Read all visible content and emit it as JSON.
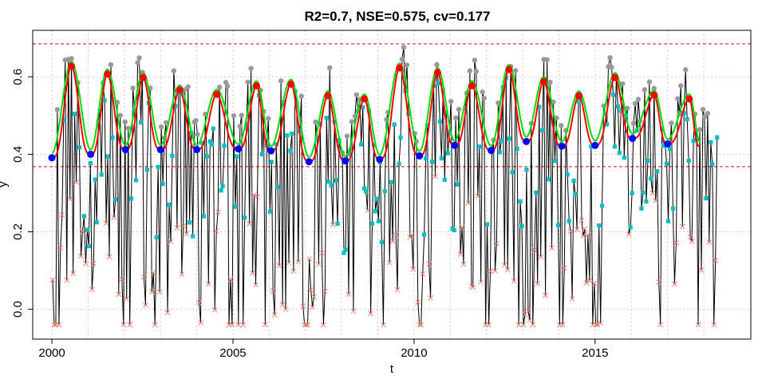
{
  "chart_data": {
    "type": "line",
    "title": "R2=0.7, NSE=0.575, cv=0.177",
    "xlabel": "t",
    "ylabel": "y",
    "xlim": [
      1999.47,
      2019.3
    ],
    "ylim": [
      -0.077,
      0.72
    ],
    "x_ticks": [
      2000,
      2005,
      2010,
      2015
    ],
    "x_tick_labels": [
      "2000",
      "2005",
      "2010",
      "2015"
    ],
    "y_ticks": [
      0.0,
      0.2,
      0.4,
      0.6
    ],
    "y_tick_labels": [
      "0.0",
      "0.2",
      "0.4",
      "0.6"
    ],
    "grid": true,
    "vgrid_years": [
      2000,
      2001,
      2002,
      2003,
      2004,
      2005,
      2006,
      2007,
      2008,
      2009,
      2010,
      2011,
      2012,
      2013,
      2014,
      2015,
      2016,
      2017,
      2018
    ],
    "hgrid": [
      0.0,
      0.2,
      0.4,
      0.6
    ],
    "reference_lines": [
      0.685,
      0.368
    ],
    "colors": {
      "raw": "#000000",
      "grey_points": "#999999",
      "cyan_points": "#00BFC4",
      "x_points": "#F08070",
      "red_curve": "#FF0000",
      "green_curve": "#00DD00",
      "peaks": "#FF0000",
      "troughs": "#0000FF",
      "ref_lines": "#FF0000",
      "grid": "#cccccc"
    },
    "seasonal": {
      "start": 2000.0,
      "end": 2017.9,
      "peaks": [
        {
          "x": 2000.54,
          "y": 0.627
        },
        {
          "x": 2001.53,
          "y": 0.607
        },
        {
          "x": 2002.52,
          "y": 0.598
        },
        {
          "x": 2003.53,
          "y": 0.566
        },
        {
          "x": 2004.55,
          "y": 0.555
        },
        {
          "x": 2005.65,
          "y": 0.577
        },
        {
          "x": 2006.6,
          "y": 0.581
        },
        {
          "x": 2007.62,
          "y": 0.551
        },
        {
          "x": 2008.63,
          "y": 0.543
        },
        {
          "x": 2009.6,
          "y": 0.623
        },
        {
          "x": 2010.65,
          "y": 0.611
        },
        {
          "x": 2011.6,
          "y": 0.577
        },
        {
          "x": 2012.62,
          "y": 0.619
        },
        {
          "x": 2013.58,
          "y": 0.588
        },
        {
          "x": 2014.55,
          "y": 0.551
        },
        {
          "x": 2015.55,
          "y": 0.598
        },
        {
          "x": 2016.63,
          "y": 0.553
        },
        {
          "x": 2017.6,
          "y": 0.543
        }
      ],
      "troughs": [
        {
          "x": 2000.0,
          "y": 0.391
        },
        {
          "x": 2001.07,
          "y": 0.4
        },
        {
          "x": 2002.03,
          "y": 0.412
        },
        {
          "x": 2003.0,
          "y": 0.412
        },
        {
          "x": 2004.0,
          "y": 0.412
        },
        {
          "x": 2005.15,
          "y": 0.414
        },
        {
          "x": 2006.05,
          "y": 0.409
        },
        {
          "x": 2007.1,
          "y": 0.381
        },
        {
          "x": 2008.1,
          "y": 0.383
        },
        {
          "x": 2009.05,
          "y": 0.387
        },
        {
          "x": 2010.15,
          "y": 0.396
        },
        {
          "x": 2011.12,
          "y": 0.423
        },
        {
          "x": 2012.13,
          "y": 0.41
        },
        {
          "x": 2013.1,
          "y": 0.433
        },
        {
          "x": 2014.08,
          "y": 0.421
        },
        {
          "x": 2015.0,
          "y": 0.423
        },
        {
          "x": 2016.03,
          "y": 0.441
        },
        {
          "x": 2017.0,
          "y": 0.427
        }
      ],
      "end_value": 0.42
    },
    "series": [
      {
        "name": "",
        "kind": "raw_line",
        "generated_from": "seasonal_with_noise"
      },
      {
        "name": "",
        "kind": "red_fit"
      },
      {
        "name": "",
        "kind": "green_fit"
      }
    ]
  }
}
